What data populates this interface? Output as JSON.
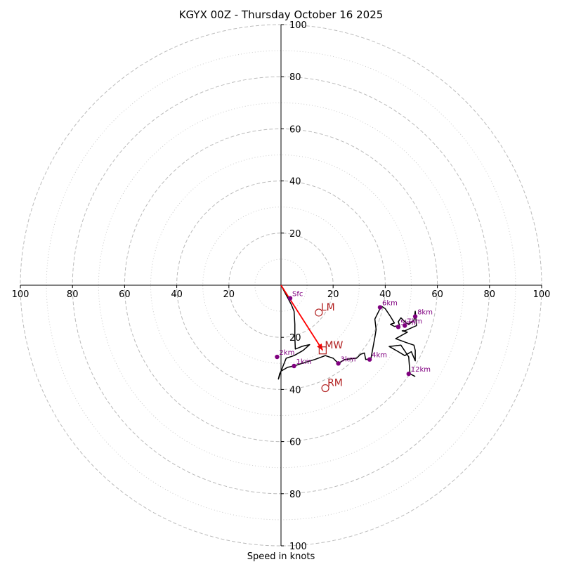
{
  "chart_data": {
    "type": "hodograph",
    "title": "KGYX 00Z - Thursday October 16 2025",
    "xlabel": "Speed in knots",
    "xlim": [
      -100,
      100
    ],
    "ylim": [
      -100,
      100
    ],
    "x_tick_labels": [
      "100",
      "80",
      "60",
      "40",
      "20",
      "20",
      "40",
      "60",
      "80",
      "100"
    ],
    "x_tick_values": [
      -100,
      -80,
      -60,
      -40,
      -20,
      20,
      40,
      60,
      80,
      100
    ],
    "y_tick_labels": [
      "100",
      "80",
      "60",
      "40",
      "20",
      "20",
      "40",
      "60",
      "80",
      "100"
    ],
    "y_tick_values": [
      100,
      80,
      60,
      40,
      20,
      -20,
      -40,
      -60,
      -80,
      -100
    ],
    "rings_major": [
      20,
      40,
      60,
      80,
      100
    ],
    "rings_minor": [
      10,
      30,
      50,
      70,
      90
    ],
    "hodograph_trace": [
      [
        0,
        0
      ],
      [
        4,
        -7.5
      ],
      [
        5,
        -10
      ],
      [
        5.3,
        -15
      ],
      [
        5.3,
        -20
      ],
      [
        5.5,
        -24.5
      ],
      [
        8,
        -23.5
      ],
      [
        9,
        -23.2
      ],
      [
        11,
        -22.8
      ],
      [
        8.5,
        -25
      ],
      [
        5,
        -27
      ],
      [
        2,
        -28
      ],
      [
        0,
        -33
      ],
      [
        -1,
        -36
      ],
      [
        -0.5,
        -34
      ],
      [
        0,
        -33
      ],
      [
        2.5,
        -31.5
      ],
      [
        5,
        -31
      ],
      [
        8,
        -30
      ],
      [
        13,
        -28.5
      ],
      [
        17,
        -27
      ],
      [
        20,
        -28
      ],
      [
        22,
        -30
      ],
      [
        24.5,
        -28.5
      ],
      [
        29,
        -28
      ],
      [
        30.5,
        -26.5
      ],
      [
        32,
        -26
      ],
      [
        32.5,
        -28.5
      ],
      [
        34.5,
        -28.2
      ],
      [
        36,
        -20
      ],
      [
        36.5,
        -17
      ],
      [
        36,
        -13
      ],
      [
        38.5,
        -8
      ],
      [
        40,
        -9
      ],
      [
        42,
        -12
      ],
      [
        43.5,
        -14.5
      ],
      [
        42,
        -15
      ],
      [
        43.5,
        -15.8
      ],
      [
        45.5,
        -15.5
      ],
      [
        45,
        -14
      ],
      [
        46,
        -12.5
      ],
      [
        48,
        -14.5
      ],
      [
        49,
        -15
      ],
      [
        51,
        -13.5
      ],
      [
        51.5,
        -10
      ],
      [
        52,
        -15.5
      ],
      [
        47.5,
        -17.5
      ],
      [
        46.5,
        -17.5
      ],
      [
        48.5,
        -18
      ],
      [
        44,
        -20.5
      ],
      [
        48,
        -22
      ],
      [
        51,
        -23
      ],
      [
        51.5,
        -25
      ],
      [
        51.5,
        -29
      ],
      [
        50,
        -25.5
      ],
      [
        47.5,
        -27
      ],
      [
        45,
        -25.5
      ],
      [
        41.5,
        -23.5
      ],
      [
        46,
        -23
      ],
      [
        49,
        -27.5
      ],
      [
        49.5,
        -34
      ],
      [
        51.5,
        -35
      ]
    ],
    "height_points": [
      {
        "label": "Sfc",
        "u": 3.5,
        "v": -5
      },
      {
        "label": "1km",
        "u": 5,
        "v": -31
      },
      {
        "label": "2km",
        "u": -1.5,
        "v": -27.5
      },
      {
        "label": "3km",
        "u": 22,
        "v": -30
      },
      {
        "label": "4km",
        "u": 34,
        "v": -28.5
      },
      {
        "label": "5km",
        "u": 45,
        "v": -16
      },
      {
        "label": "6km",
        "u": 38,
        "v": -8.5
      },
      {
        "label": "7km",
        "u": 47.5,
        "v": -15.5
      },
      {
        "label": "8km",
        "u": 51.5,
        "v": -12
      },
      {
        "label": "12km",
        "u": 49,
        "v": -34
      }
    ],
    "storm_motion": [
      {
        "label": "LM",
        "marker": "circle",
        "u": 14.5,
        "v": -10.5
      },
      {
        "label": "MW",
        "marker": "square",
        "u": 16,
        "v": -25
      },
      {
        "label": "RM",
        "marker": "circle",
        "u": 17,
        "v": -39.5
      }
    ],
    "shear_vector": {
      "from": [
        0,
        0
      ],
      "to": [
        16,
        -25
      ]
    },
    "colors": {
      "trace": "#000000",
      "height_points": "#800080",
      "storm_motion": "#b22222",
      "shear_vector": "#ff0000",
      "rings": "#bbbbbb"
    }
  }
}
